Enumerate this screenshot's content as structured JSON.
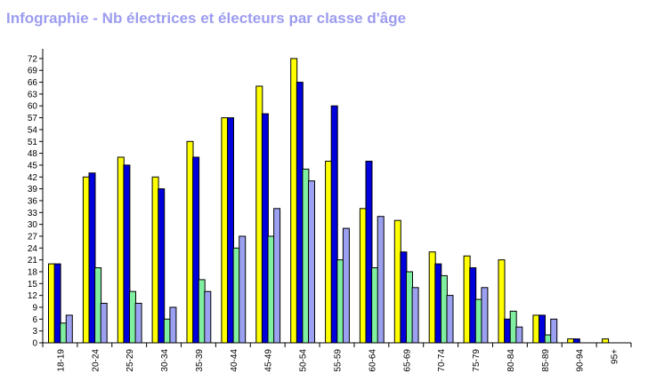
{
  "chart_data": {
    "type": "bar",
    "title": "Infographie - Nb électrices et électeurs par classe d'âge",
    "xlabel": "",
    "ylabel": "",
    "ylim": [
      0,
      74
    ],
    "y_ticks": [
      0,
      3,
      6,
      9,
      12,
      15,
      18,
      21,
      24,
      27,
      30,
      33,
      36,
      39,
      42,
      45,
      48,
      51,
      54,
      57,
      60,
      63,
      66,
      69,
      72
    ],
    "grid": false,
    "legend": "none",
    "categories": [
      "18-19",
      "20-24",
      "25-29",
      "30-34",
      "35-39",
      "40-44",
      "45-49",
      "50-54",
      "55-59",
      "60-64",
      "65-69",
      "70-74",
      "75-79",
      "80-84",
      "85-89",
      "90-94",
      "95+"
    ],
    "series": [
      {
        "color": "#ffff00",
        "values": [
          20,
          42,
          47,
          42,
          51,
          57,
          65,
          72,
          46,
          34,
          31,
          23,
          22,
          21,
          7,
          1,
          1
        ]
      },
      {
        "color": "#0000dc",
        "values": [
          20,
          43,
          45,
          39,
          47,
          57,
          58,
          66,
          60,
          46,
          23,
          20,
          19,
          6,
          7,
          1,
          0
        ]
      },
      {
        "color": "#80f0a0",
        "values": [
          5,
          19,
          13,
          6,
          16,
          24,
          27,
          44,
          21,
          19,
          18,
          17,
          11,
          8,
          2,
          0,
          0
        ]
      },
      {
        "color": "#9ca0f0",
        "values": [
          7,
          10,
          10,
          9,
          13,
          27,
          34,
          41,
          29,
          32,
          14,
          12,
          14,
          4,
          6,
          0,
          0
        ]
      }
    ]
  }
}
